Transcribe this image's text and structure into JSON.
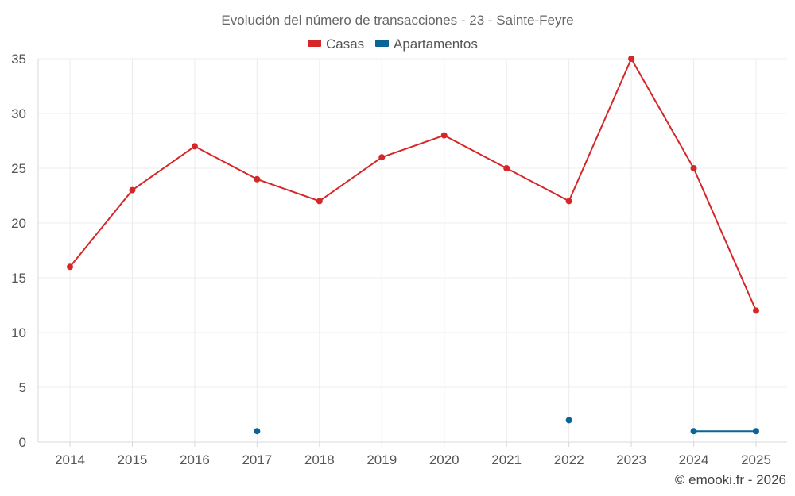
{
  "chart_data": {
    "type": "line",
    "title": "Evolución del número de transacciones - 23 - Sainte-Feyre",
    "xlabel": "",
    "ylabel": "",
    "ylim": [
      0,
      35
    ],
    "yticks": [
      0,
      5,
      10,
      15,
      20,
      25,
      30,
      35
    ],
    "categories": [
      "2014",
      "2015",
      "2016",
      "2017",
      "2018",
      "2019",
      "2020",
      "2021",
      "2022",
      "2023",
      "2024",
      "2025"
    ],
    "grid": true,
    "legend_position": "top-center",
    "series": [
      {
        "name": "Casas",
        "color": "#d62728",
        "values": [
          16,
          23,
          27,
          24,
          22,
          26,
          28,
          25,
          22,
          35,
          25,
          12
        ]
      },
      {
        "name": "Apartamentos",
        "color": "#0a6496",
        "values": [
          null,
          null,
          null,
          1,
          null,
          null,
          null,
          null,
          2,
          null,
          1,
          1
        ]
      }
    ]
  },
  "credit": "© emooki.fr - 2026"
}
